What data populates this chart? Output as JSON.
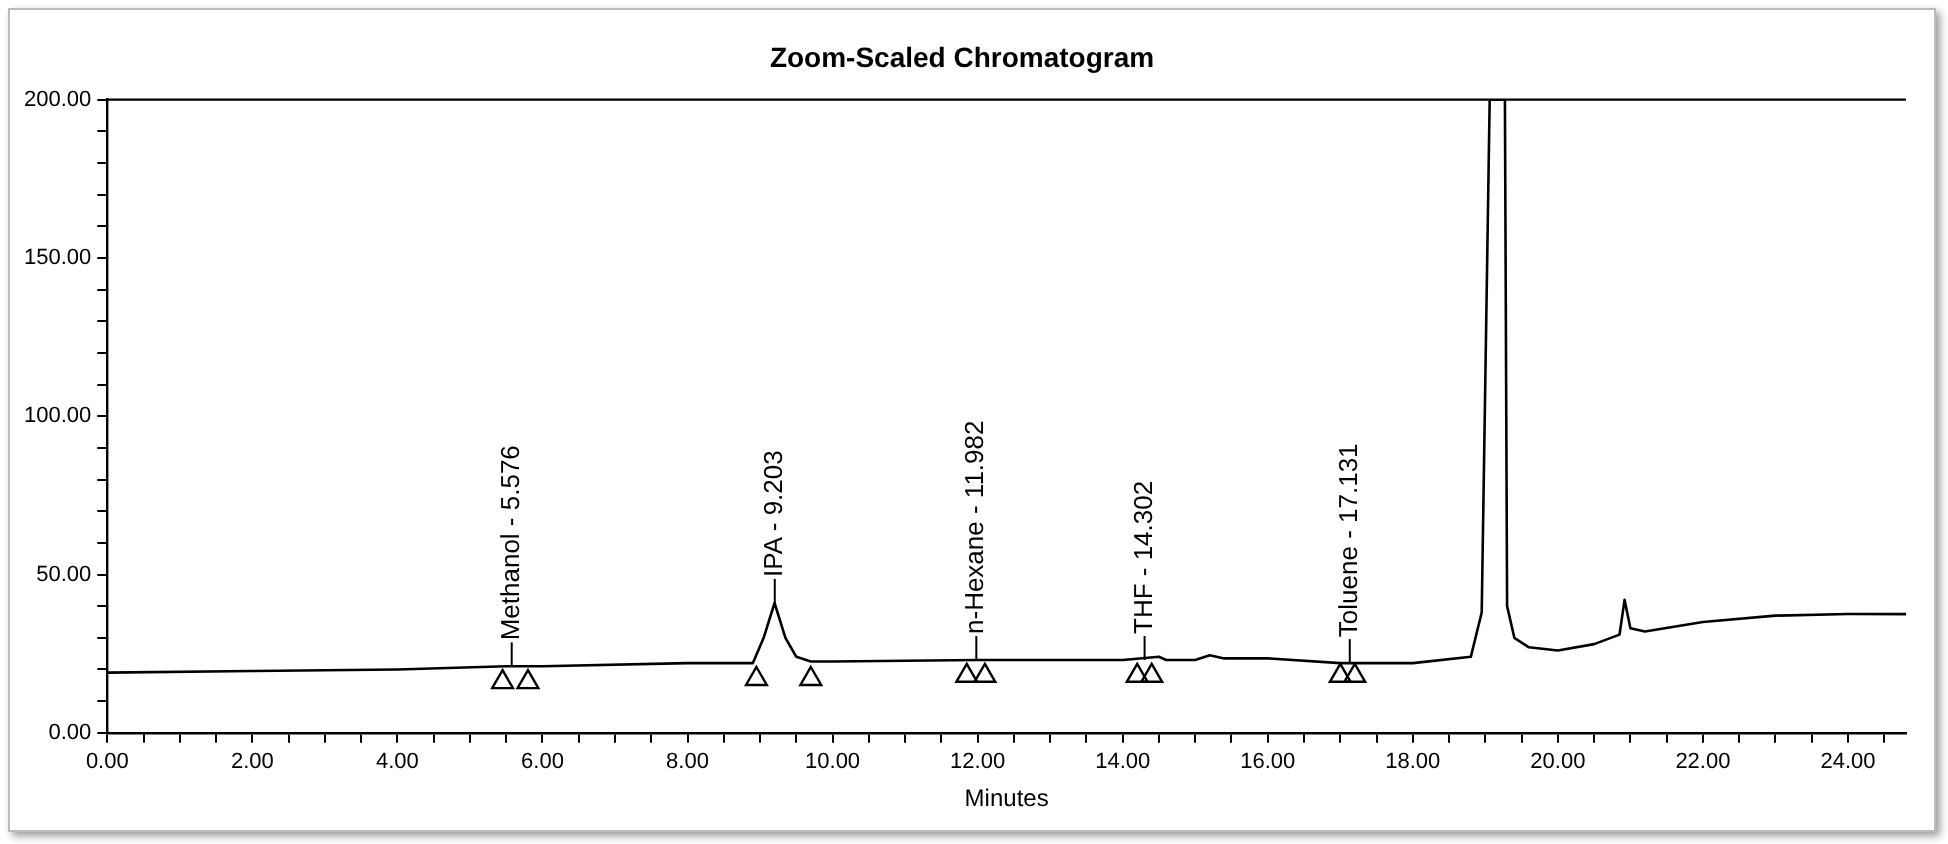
{
  "chart_data": {
    "type": "line",
    "title": "Zoom-Scaled Chromatogram",
    "xlabel": "Minutes",
    "xlim": [
      0,
      24.8
    ],
    "ylim": [
      0,
      200
    ],
    "xticks": [
      {
        "value": 0,
        "label": "0.00"
      },
      {
        "value": 0.5,
        "label": null
      },
      {
        "value": 1,
        "label": null
      },
      {
        "value": 1.5,
        "label": null
      },
      {
        "value": 2,
        "label": "2.00"
      },
      {
        "value": 2.5,
        "label": null
      },
      {
        "value": 3,
        "label": null
      },
      {
        "value": 3.5,
        "label": null
      },
      {
        "value": 4,
        "label": "4.00"
      },
      {
        "value": 4.5,
        "label": null
      },
      {
        "value": 5,
        "label": null
      },
      {
        "value": 5.5,
        "label": null
      },
      {
        "value": 6,
        "label": "6.00"
      },
      {
        "value": 6.5,
        "label": null
      },
      {
        "value": 7,
        "label": null
      },
      {
        "value": 7.5,
        "label": null
      },
      {
        "value": 8,
        "label": "8.00"
      },
      {
        "value": 8.5,
        "label": null
      },
      {
        "value": 9,
        "label": null
      },
      {
        "value": 9.5,
        "label": null
      },
      {
        "value": 10,
        "label": "10.00"
      },
      {
        "value": 10.5,
        "label": null
      },
      {
        "value": 11,
        "label": null
      },
      {
        "value": 11.5,
        "label": null
      },
      {
        "value": 12,
        "label": "12.00"
      },
      {
        "value": 12.5,
        "label": null
      },
      {
        "value": 13,
        "label": null
      },
      {
        "value": 13.5,
        "label": null
      },
      {
        "value": 14,
        "label": "14.00"
      },
      {
        "value": 14.5,
        "label": null
      },
      {
        "value": 15,
        "label": null
      },
      {
        "value": 15.5,
        "label": null
      },
      {
        "value": 16,
        "label": "16.00"
      },
      {
        "value": 16.5,
        "label": null
      },
      {
        "value": 17,
        "label": null
      },
      {
        "value": 17.5,
        "label": null
      },
      {
        "value": 18,
        "label": "18.00"
      },
      {
        "value": 18.5,
        "label": null
      },
      {
        "value": 19,
        "label": null
      },
      {
        "value": 19.5,
        "label": null
      },
      {
        "value": 20,
        "label": "20.00"
      },
      {
        "value": 20.5,
        "label": null
      },
      {
        "value": 21,
        "label": null
      },
      {
        "value": 21.5,
        "label": null
      },
      {
        "value": 22,
        "label": "22.00"
      },
      {
        "value": 22.5,
        "label": null
      },
      {
        "value": 23,
        "label": null
      },
      {
        "value": 23.5,
        "label": null
      },
      {
        "value": 24,
        "label": "24.00"
      },
      {
        "value": 24.5,
        "label": null
      }
    ],
    "yticks": [
      {
        "value": 0,
        "label": "0.00"
      },
      {
        "value": 10,
        "label": null
      },
      {
        "value": 20,
        "label": null
      },
      {
        "value": 30,
        "label": null
      },
      {
        "value": 40,
        "label": null
      },
      {
        "value": 50,
        "label": "50.00"
      },
      {
        "value": 60,
        "label": null
      },
      {
        "value": 70,
        "label": null
      },
      {
        "value": 80,
        "label": null
      },
      {
        "value": 90,
        "label": null
      },
      {
        "value": 100,
        "label": "100.00"
      },
      {
        "value": 110,
        "label": null
      },
      {
        "value": 120,
        "label": null
      },
      {
        "value": 130,
        "label": null
      },
      {
        "value": 140,
        "label": null
      },
      {
        "value": 150,
        "label": "150.00"
      },
      {
        "value": 160,
        "label": null
      },
      {
        "value": 170,
        "label": null
      },
      {
        "value": 180,
        "label": null
      },
      {
        "value": 190,
        "label": null
      },
      {
        "value": 200,
        "label": "200.00"
      }
    ],
    "grid": false,
    "legend": false,
    "series": [
      {
        "color": "#000000",
        "marker": "none",
        "x": [
          0,
          2,
          4,
          5.5,
          6,
          8,
          8.9,
          9.05,
          9.2,
          9.35,
          9.5,
          9.7,
          10,
          12,
          14,
          14.5,
          14.6,
          15,
          15.2,
          15.4,
          16,
          17,
          18,
          18.8,
          18.95,
          19.06,
          19.12,
          19.27,
          19.3,
          19.4,
          19.6,
          20,
          20.5,
          20.85,
          20.92,
          21,
          21.2,
          22,
          23,
          24,
          24.8
        ],
        "values": [
          19,
          19.5,
          20,
          21,
          21,
          22,
          22,
          30,
          41,
          30,
          24,
          22.5,
          22.5,
          23,
          23,
          24,
          23,
          23,
          24.5,
          23.5,
          23.5,
          22,
          22,
          24,
          38,
          200,
          200,
          200,
          40,
          30,
          27,
          26,
          28,
          31,
          42,
          33,
          32,
          35,
          37,
          37.5,
          37.5
        ]
      },
      {
        "type": "scatter",
        "color": "#000000",
        "marker": "triangle",
        "x": [
          5.45,
          5.8,
          8.95,
          9.7,
          11.85,
          12.1,
          14.2,
          14.4,
          17.0,
          17.2
        ],
        "values": [
          16,
          16,
          17,
          17,
          18,
          18,
          18,
          18,
          18,
          18
        ]
      }
    ],
    "annotations": [
      {
        "text": "Methanol - 5.576",
        "x": 5.576,
        "y": 21
      },
      {
        "text": "IPA - 9.203",
        "x": 9.203,
        "y": 41
      },
      {
        "text": "n-Hexane - 11.982",
        "x": 11.982,
        "y": 23
      },
      {
        "text": "THF - 14.302",
        "x": 14.302,
        "y": 23
      },
      {
        "text": "Toluene - 17.131",
        "x": 17.131,
        "y": 22
      }
    ]
  }
}
